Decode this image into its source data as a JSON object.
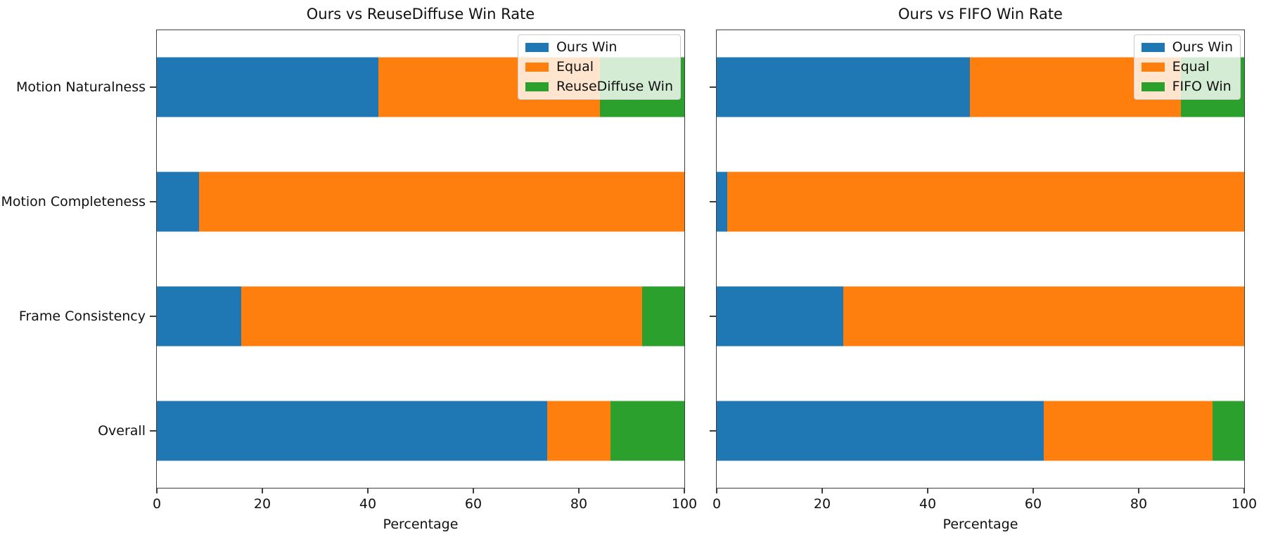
{
  "figure": {
    "background": "#ffffff",
    "spine_color": "#3f3f3f",
    "text_color": "#111111"
  },
  "x_axis": {
    "label": "Percentage",
    "ticks": [
      "0",
      "20",
      "40",
      "60",
      "80",
      "100"
    ],
    "range": [
      0,
      100
    ]
  },
  "chart_data": [
    {
      "type": "bar",
      "orientation": "horizontal",
      "stacked": true,
      "title": "Ours vs ReuseDiffuse Win Rate",
      "xlabel": "Percentage",
      "xlim": [
        0,
        100
      ],
      "xticks": [
        0,
        20,
        40,
        60,
        80,
        100
      ],
      "grid": false,
      "categories": [
        "Motion Naturalness",
        "Motion Completeness",
        "Frame Consistency",
        "Overall"
      ],
      "show_category_labels": true,
      "legend": {
        "position": "upper right",
        "entries": [
          "Ours Win",
          "Equal",
          "ReuseDiffuse Win"
        ]
      },
      "series": [
        {
          "name": "Ours Win",
          "color": "#1f77b4",
          "values": [
            42,
            8,
            16,
            74
          ]
        },
        {
          "name": "Equal",
          "color": "#ff7f0e",
          "values": [
            42,
            92,
            76,
            12
          ]
        },
        {
          "name": "ReuseDiffuse Win",
          "color": "#2ca02c",
          "values": [
            16,
            0,
            8,
            14
          ]
        }
      ]
    },
    {
      "type": "bar",
      "orientation": "horizontal",
      "stacked": true,
      "title": "Ours vs FIFO Win Rate",
      "xlabel": "Percentage",
      "xlim": [
        0,
        100
      ],
      "xticks": [
        0,
        20,
        40,
        60,
        80,
        100
      ],
      "grid": false,
      "categories": [
        "Motion Naturalness",
        "Motion Completeness",
        "Frame Consistency",
        "Overall"
      ],
      "show_category_labels": false,
      "legend": {
        "position": "upper right",
        "entries": [
          "Ours Win",
          "Equal",
          "FIFO Win"
        ]
      },
      "series": [
        {
          "name": "Ours Win",
          "color": "#1f77b4",
          "values": [
            48,
            2,
            24,
            62
          ]
        },
        {
          "name": "Equal",
          "color": "#ff7f0e",
          "values": [
            40,
            98,
            76,
            32
          ]
        },
        {
          "name": "FIFO Win",
          "color": "#2ca02c",
          "values": [
            12,
            0,
            0,
            6
          ]
        }
      ]
    }
  ]
}
